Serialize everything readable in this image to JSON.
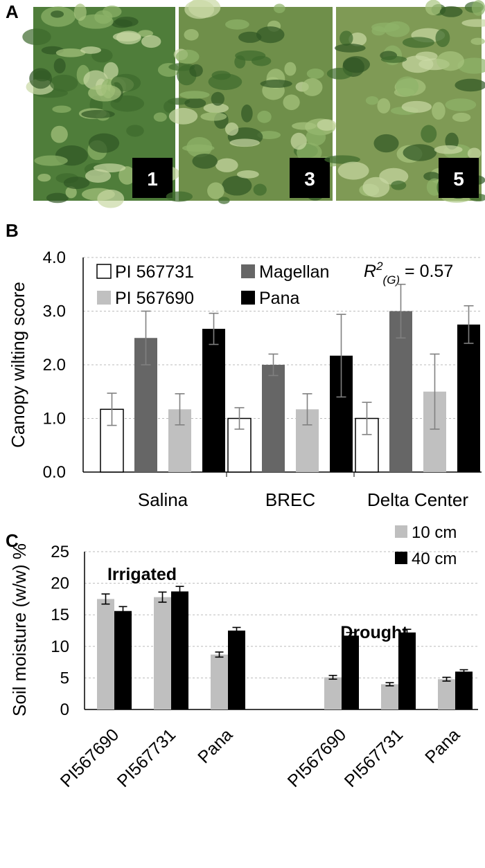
{
  "panel_labels": [
    "A",
    "B",
    "C"
  ],
  "photos": [
    {
      "label": "1"
    },
    {
      "label": "3"
    },
    {
      "label": "5"
    }
  ],
  "chart_data": [
    {
      "type": "bar",
      "ylabel": "Canopy wilting score",
      "categories": [
        "Salina",
        "BREC",
        "Delta Center"
      ],
      "series": [
        {
          "name": "PI 567731",
          "color": "#ffffff",
          "edge_color": "#000000",
          "values": [
            1.17,
            1.0,
            1.0
          ],
          "errors": [
            0.3,
            0.2,
            0.3
          ]
        },
        {
          "name": "Magellan",
          "color": "#666666",
          "values": [
            2.5,
            2.0,
            3.0
          ],
          "errors": [
            0.5,
            0.2,
            0.5
          ]
        },
        {
          "name": "PI 567690",
          "color": "#c0c0c0",
          "values": [
            1.17,
            1.17,
            1.5
          ],
          "errors": [
            0.29,
            0.29,
            0.7
          ]
        },
        {
          "name": "Pana",
          "color": "#000000",
          "values": [
            2.67,
            2.17,
            2.75
          ],
          "errors": [
            0.29,
            0.77,
            0.35
          ]
        }
      ],
      "error_color": "#808080",
      "ylim": [
        0,
        4
      ],
      "yticks": [
        {
          "value": 0,
          "label": "0.0"
        },
        {
          "value": 1,
          "label": "1.0"
        },
        {
          "value": 2,
          "label": "2.0"
        },
        {
          "value": 3,
          "label": "3.0"
        },
        {
          "value": 4,
          "label": "4.0"
        }
      ],
      "grid": true,
      "legend": "top-left",
      "annotation": {
        "base": "R",
        "sup": "2",
        "sub": "(G)",
        "rest": " = 0.57"
      }
    },
    {
      "type": "bar",
      "ylabel": "Soil moisture (w/w) %",
      "categories": [
        "PI567690",
        "PI567731",
        "Pana",
        null,
        "PI567690",
        "PI567731",
        "Pana"
      ],
      "series": [
        {
          "name": "10 cm",
          "color": "#bfbfbf",
          "values": [
            17.5,
            17.8,
            8.7,
            null,
            5.1,
            4.0,
            4.8
          ],
          "errors": [
            0.8,
            0.8,
            0.4,
            null,
            0.3,
            0.25,
            0.3
          ]
        },
        {
          "name": "40 cm",
          "color": "#000000",
          "values": [
            15.6,
            18.7,
            12.5,
            null,
            11.7,
            12.2,
            6.0
          ],
          "errors": [
            0.7,
            0.8,
            0.5,
            null,
            0.5,
            0.5,
            0.3
          ]
        }
      ],
      "error_color": "#000000",
      "ylim": [
        0,
        25
      ],
      "yticks": [
        0,
        5,
        10,
        15,
        20,
        25
      ],
      "grid": true,
      "legend": "top-right",
      "annotations": [
        {
          "text": "Irrigated"
        },
        {
          "text": "Drought"
        }
      ]
    }
  ]
}
